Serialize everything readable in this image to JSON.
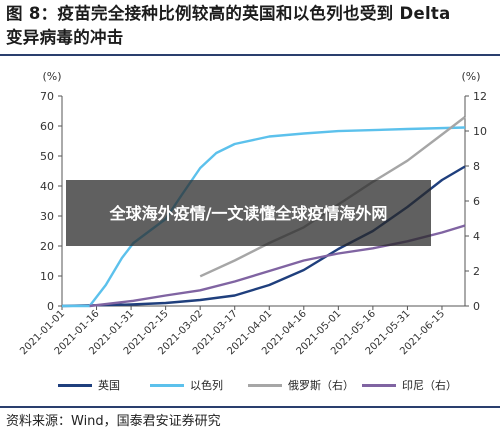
{
  "figure": {
    "title_line1": "图 8：疫苗完全接种比例较高的英国和以色列也受到 Delta",
    "title_line2": "变异病毒的冲击",
    "source": "资料来源：Wind，国泰君安证券研究"
  },
  "banner": {
    "text": "全球海外疫情/一文读懂全球疫情海外网"
  },
  "chart_data": {
    "type": "line",
    "left_axis": {
      "unit_label": "(%)",
      "ylim": [
        0,
        70
      ],
      "ticks": [
        0,
        10,
        20,
        30,
        40,
        50,
        60,
        70
      ]
    },
    "right_axis": {
      "unit_label": "(%)",
      "ylim": [
        0,
        12
      ],
      "ticks": [
        0,
        2,
        4,
        6,
        8,
        10,
        12
      ]
    },
    "x_ticks": [
      "2021-01-01",
      "2021-01-16",
      "2021-01-31",
      "2021-02-15",
      "2021-03-02",
      "2021-03-17",
      "2021-04-01",
      "2021-04-16",
      "2021-05-01",
      "2021-05-16",
      "2021-05-31",
      "2021-06-15"
    ],
    "x_range": [
      "2021-01-01",
      "2021-06-25"
    ],
    "series": [
      {
        "name": "英国",
        "axis": "left",
        "color": "#1f3f7d",
        "points": [
          [
            "2021-01-01",
            0
          ],
          [
            "2021-01-31",
            0.5
          ],
          [
            "2021-02-15",
            1
          ],
          [
            "2021-03-02",
            2
          ],
          [
            "2021-03-17",
            3.5
          ],
          [
            "2021-04-01",
            7
          ],
          [
            "2021-04-16",
            12
          ],
          [
            "2021-05-01",
            19
          ],
          [
            "2021-05-16",
            25
          ],
          [
            "2021-05-31",
            33
          ],
          [
            "2021-06-15",
            42
          ],
          [
            "2021-06-25",
            46.5
          ]
        ]
      },
      {
        "name": "以色列",
        "axis": "left",
        "color": "#5cc1ec",
        "points": [
          [
            "2021-01-01",
            0
          ],
          [
            "2021-01-13",
            0
          ],
          [
            "2021-01-20",
            7
          ],
          [
            "2021-01-27",
            16
          ],
          [
            "2021-02-01",
            21
          ],
          [
            "2021-02-15",
            29
          ],
          [
            "2021-02-22",
            37
          ],
          [
            "2021-03-02",
            46
          ],
          [
            "2021-03-09",
            51
          ],
          [
            "2021-03-17",
            54
          ],
          [
            "2021-04-01",
            56.5
          ],
          [
            "2021-04-16",
            57.5
          ],
          [
            "2021-05-01",
            58.3
          ],
          [
            "2021-05-31",
            59
          ],
          [
            "2021-06-25",
            59.5
          ]
        ]
      },
      {
        "name": "俄罗斯（右）",
        "axis": "right",
        "color": "#a6a6a6",
        "points": [
          [
            "2021-03-02",
            1.7
          ],
          [
            "2021-03-17",
            2.6
          ],
          [
            "2021-04-01",
            3.6
          ],
          [
            "2021-04-16",
            4.5
          ],
          [
            "2021-05-01",
            5.8
          ],
          [
            "2021-05-16",
            7.1
          ],
          [
            "2021-05-31",
            8.3
          ],
          [
            "2021-06-15",
            9.8
          ],
          [
            "2021-06-25",
            10.8
          ]
        ]
      },
      {
        "name": "印尼（右）",
        "axis": "right",
        "color": "#8064a2",
        "points": [
          [
            "2021-01-13",
            0
          ],
          [
            "2021-02-01",
            0.3
          ],
          [
            "2021-02-15",
            0.6
          ],
          [
            "2021-03-02",
            0.9
          ],
          [
            "2021-03-17",
            1.4
          ],
          [
            "2021-04-01",
            2
          ],
          [
            "2021-04-16",
            2.6
          ],
          [
            "2021-05-01",
            3
          ],
          [
            "2021-05-16",
            3.3
          ],
          [
            "2021-05-31",
            3.7
          ],
          [
            "2021-06-15",
            4.2
          ],
          [
            "2021-06-25",
            4.6
          ]
        ]
      }
    ]
  }
}
